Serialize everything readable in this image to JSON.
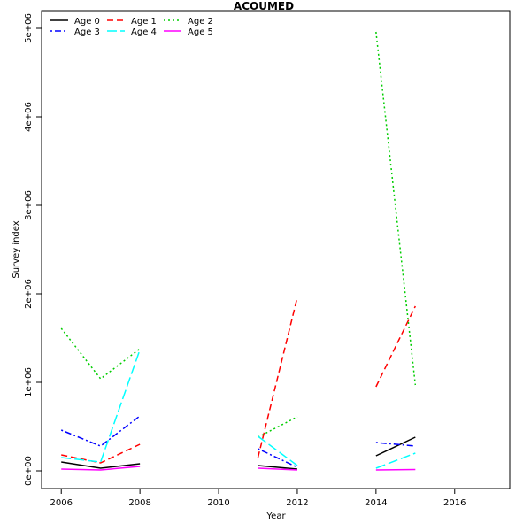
{
  "chart_data": {
    "type": "line",
    "title": "ACOUMED",
    "xlabel": "Year",
    "ylabel": "Survey index",
    "xlim": [
      2005.5,
      2017.4
    ],
    "ylim": [
      -200000,
      5200000
    ],
    "x_ticks": [
      2006,
      2008,
      2010,
      2012,
      2014,
      2016
    ],
    "x_tick_labels": [
      "2006",
      "2008",
      "2010",
      "2012",
      "2014",
      "2016"
    ],
    "y_ticks": [
      0,
      1000000,
      2000000,
      3000000,
      4000000,
      5000000
    ],
    "y_tick_labels": [
      "0e+00",
      "1e+06",
      "2e+06",
      "3e+06",
      "4e+06",
      "5e+06"
    ],
    "grid": false,
    "legend_position": "top-left",
    "x": [
      2006,
      2007,
      2008,
      2009,
      2010,
      2011,
      2012,
      2013,
      2014,
      2015
    ],
    "series": [
      {
        "name": "Age 0",
        "color": "#000000",
        "dash": "solid",
        "values": [
          100000,
          30000,
          80000,
          null,
          null,
          60000,
          20000,
          null,
          170000,
          380000
        ]
      },
      {
        "name": "Age 1",
        "color": "#ff0000",
        "dash": "dashed",
        "values": [
          180000,
          90000,
          300000,
          null,
          null,
          150000,
          1960000,
          null,
          950000,
          1860000
        ]
      },
      {
        "name": "Age 2",
        "color": "#00cd00",
        "dash": "dotted",
        "values": [
          1610000,
          1040000,
          1380000,
          null,
          null,
          380000,
          610000,
          null,
          4960000,
          970000
        ]
      },
      {
        "name": "Age 3",
        "color": "#0000ff",
        "dash": "dotdash",
        "values": [
          460000,
          280000,
          620000,
          null,
          null,
          250000,
          40000,
          null,
          320000,
          280000
        ]
      },
      {
        "name": "Age 4",
        "color": "#00ffff",
        "dash": "longdash",
        "values": [
          150000,
          100000,
          1370000,
          null,
          null,
          390000,
          60000,
          null,
          30000,
          200000
        ]
      },
      {
        "name": "Age 5",
        "color": "#ff00ff",
        "dash": "solid",
        "values": [
          20000,
          10000,
          50000,
          null,
          null,
          30000,
          10000,
          null,
          10000,
          15000
        ]
      }
    ]
  }
}
